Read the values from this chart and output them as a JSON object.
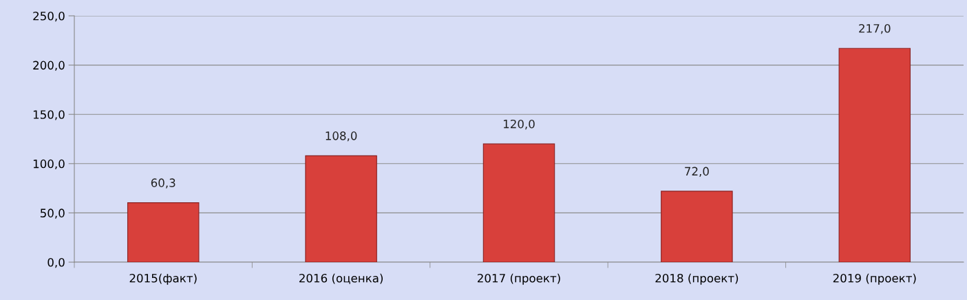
{
  "chart_data": {
    "type": "bar",
    "categories": [
      "2015(факт)",
      "2016 (оценка)",
      "2017 (проект)",
      "2018 (проект)",
      "2019 (проект)"
    ],
    "values": [
      60.3,
      108.0,
      120.0,
      72.0,
      217.0
    ],
    "value_labels": [
      "60,3",
      "108,0",
      "120,0",
      "72,0",
      "217,0"
    ],
    "color": "#d8403b",
    "ylim": [
      0,
      250
    ],
    "yticks": [
      {
        "value": 0,
        "label": "0,0"
      },
      {
        "value": 50,
        "label": "50,0"
      },
      {
        "value": 100,
        "label": "100,0"
      },
      {
        "value": 150,
        "label": "150,0"
      },
      {
        "value": 200,
        "label": "200,0"
      },
      {
        "value": 250,
        "label": "250,0"
      }
    ],
    "grid": "y",
    "legend": false
  }
}
